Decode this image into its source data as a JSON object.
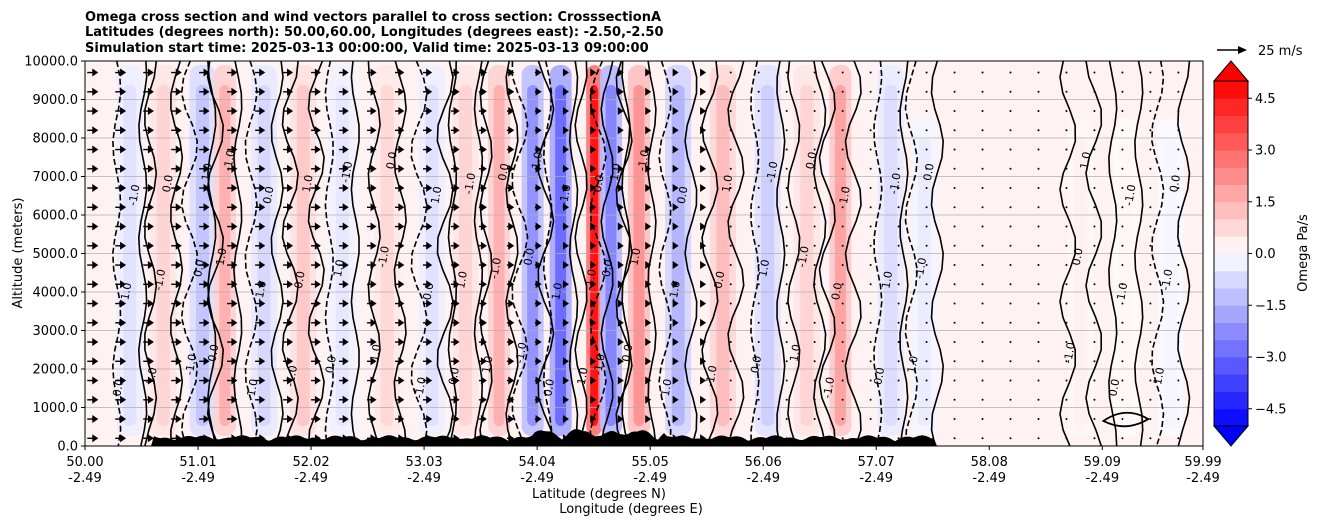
{
  "chart_data": {
    "type": "heatmap",
    "title_lines": [
      "Omega cross section and wind vectors parallel to cross section: CrosssectionA",
      "Latitudes (degrees north): 50.00,60.00, Longitudes (degrees east): -2.50,-2.50",
      "Simulation start time: 2025-03-13 00:00:00, Valid time: 2025-03-13 09:00:00"
    ],
    "xlabel_lines": [
      "Latitude (degrees N)",
      "Longitude (degrees E)"
    ],
    "ylabel": "Altitude (meters)",
    "x_ticks": [
      {
        "lat": "50.00",
        "lon": "-2.49",
        "value": 50.0
      },
      {
        "lat": "51.01",
        "lon": "-2.49",
        "value": 51.01
      },
      {
        "lat": "52.02",
        "lon": "-2.49",
        "value": 52.02
      },
      {
        "lat": "53.03",
        "lon": "-2.49",
        "value": 53.03
      },
      {
        "lat": "54.04",
        "lon": "-2.49",
        "value": 54.04
      },
      {
        "lat": "55.05",
        "lon": "-2.49",
        "value": 55.05
      },
      {
        "lat": "56.06",
        "lon": "-2.49",
        "value": 56.06
      },
      {
        "lat": "57.07",
        "lon": "-2.49",
        "value": 57.07
      },
      {
        "lat": "58.08",
        "lon": "-2.49",
        "value": 58.08
      },
      {
        "lat": "59.09",
        "lon": "-2.49",
        "value": 59.09
      },
      {
        "lat": "59.99",
        "lon": "-2.49",
        "value": 59.99
      }
    ],
    "xlim": [
      50.0,
      59.99
    ],
    "y_ticks": [
      "0.0",
      "1000.0",
      "2000.0",
      "3000.0",
      "4000.0",
      "5000.0",
      "6000.0",
      "7000.0",
      "8000.0",
      "9000.0",
      "10000.0"
    ],
    "ylim": [
      0,
      10000
    ],
    "grid": "horizontal",
    "colorbar": {
      "label": "Omega Pa/s",
      "ticks": [
        "4.5",
        "3.0",
        "1.5",
        "0.0",
        "−1.5",
        "−3.0",
        "−4.5"
      ],
      "range": [
        -5.0,
        5.0
      ],
      "extend": "both",
      "colormap": "bwr",
      "low_color": "#0000ff",
      "mid_color": "#ffffff",
      "high_color": "#ff0000"
    },
    "vector_key": {
      "label": "25 m/s",
      "speed": 25
    },
    "contour_levels": [
      -1.0,
      0.0,
      1.0
    ],
    "contour_label_text": [
      "0.0",
      "1.0",
      "-1.0"
    ],
    "omega_columns": [
      {
        "lat": 50.4,
        "value": -0.6
      },
      {
        "lat": 50.7,
        "value": 0.9
      },
      {
        "lat": 51.05,
        "value": -1.2
      },
      {
        "lat": 51.25,
        "value": 1.6
      },
      {
        "lat": 51.6,
        "value": -0.8
      },
      {
        "lat": 51.95,
        "value": 1.1
      },
      {
        "lat": 52.3,
        "value": -0.5
      },
      {
        "lat": 52.7,
        "value": 0.8
      },
      {
        "lat": 53.1,
        "value": -0.6
      },
      {
        "lat": 53.4,
        "value": 0.9
      },
      {
        "lat": 53.7,
        "value": 1.6
      },
      {
        "lat": 54.0,
        "value": -2.2
      },
      {
        "lat": 54.25,
        "value": -3.0
      },
      {
        "lat": 54.55,
        "value": 4.8
      },
      {
        "lat": 54.7,
        "value": -2.5
      },
      {
        "lat": 54.95,
        "value": 2.2
      },
      {
        "lat": 55.3,
        "value": -1.5
      },
      {
        "lat": 55.7,
        "value": 1.4
      },
      {
        "lat": 56.1,
        "value": -1.0
      },
      {
        "lat": 56.45,
        "value": 0.9
      },
      {
        "lat": 56.75,
        "value": 1.9
      },
      {
        "lat": 57.2,
        "value": -0.7
      },
      {
        "lat": 57.5,
        "value": -0.4
      },
      {
        "lat": 58.9,
        "value": 0.3
      },
      {
        "lat": 59.3,
        "value": 0.2
      },
      {
        "lat": 59.7,
        "value": -0.2
      }
    ],
    "wind_levels": [
      200,
      700,
      1200,
      1700,
      2200,
      2700,
      3200,
      3700,
      4200,
      4700,
      5200,
      5700,
      6200,
      6700,
      7200,
      7700,
      8200,
      8700,
      9200,
      9700
    ],
    "wind_profile": [
      {
        "lat": 50.0,
        "speed": 12.0
      },
      {
        "lat": 53.03,
        "speed": 10.0
      },
      {
        "lat": 54.5,
        "speed": 6.0
      },
      {
        "lat": 55.8,
        "speed": 3.0
      },
      {
        "lat": 57.07,
        "speed": 1.0
      },
      {
        "lat": 57.5,
        "speed": 0.3
      },
      {
        "lat": 59.99,
        "speed": 0.1
      }
    ]
  }
}
